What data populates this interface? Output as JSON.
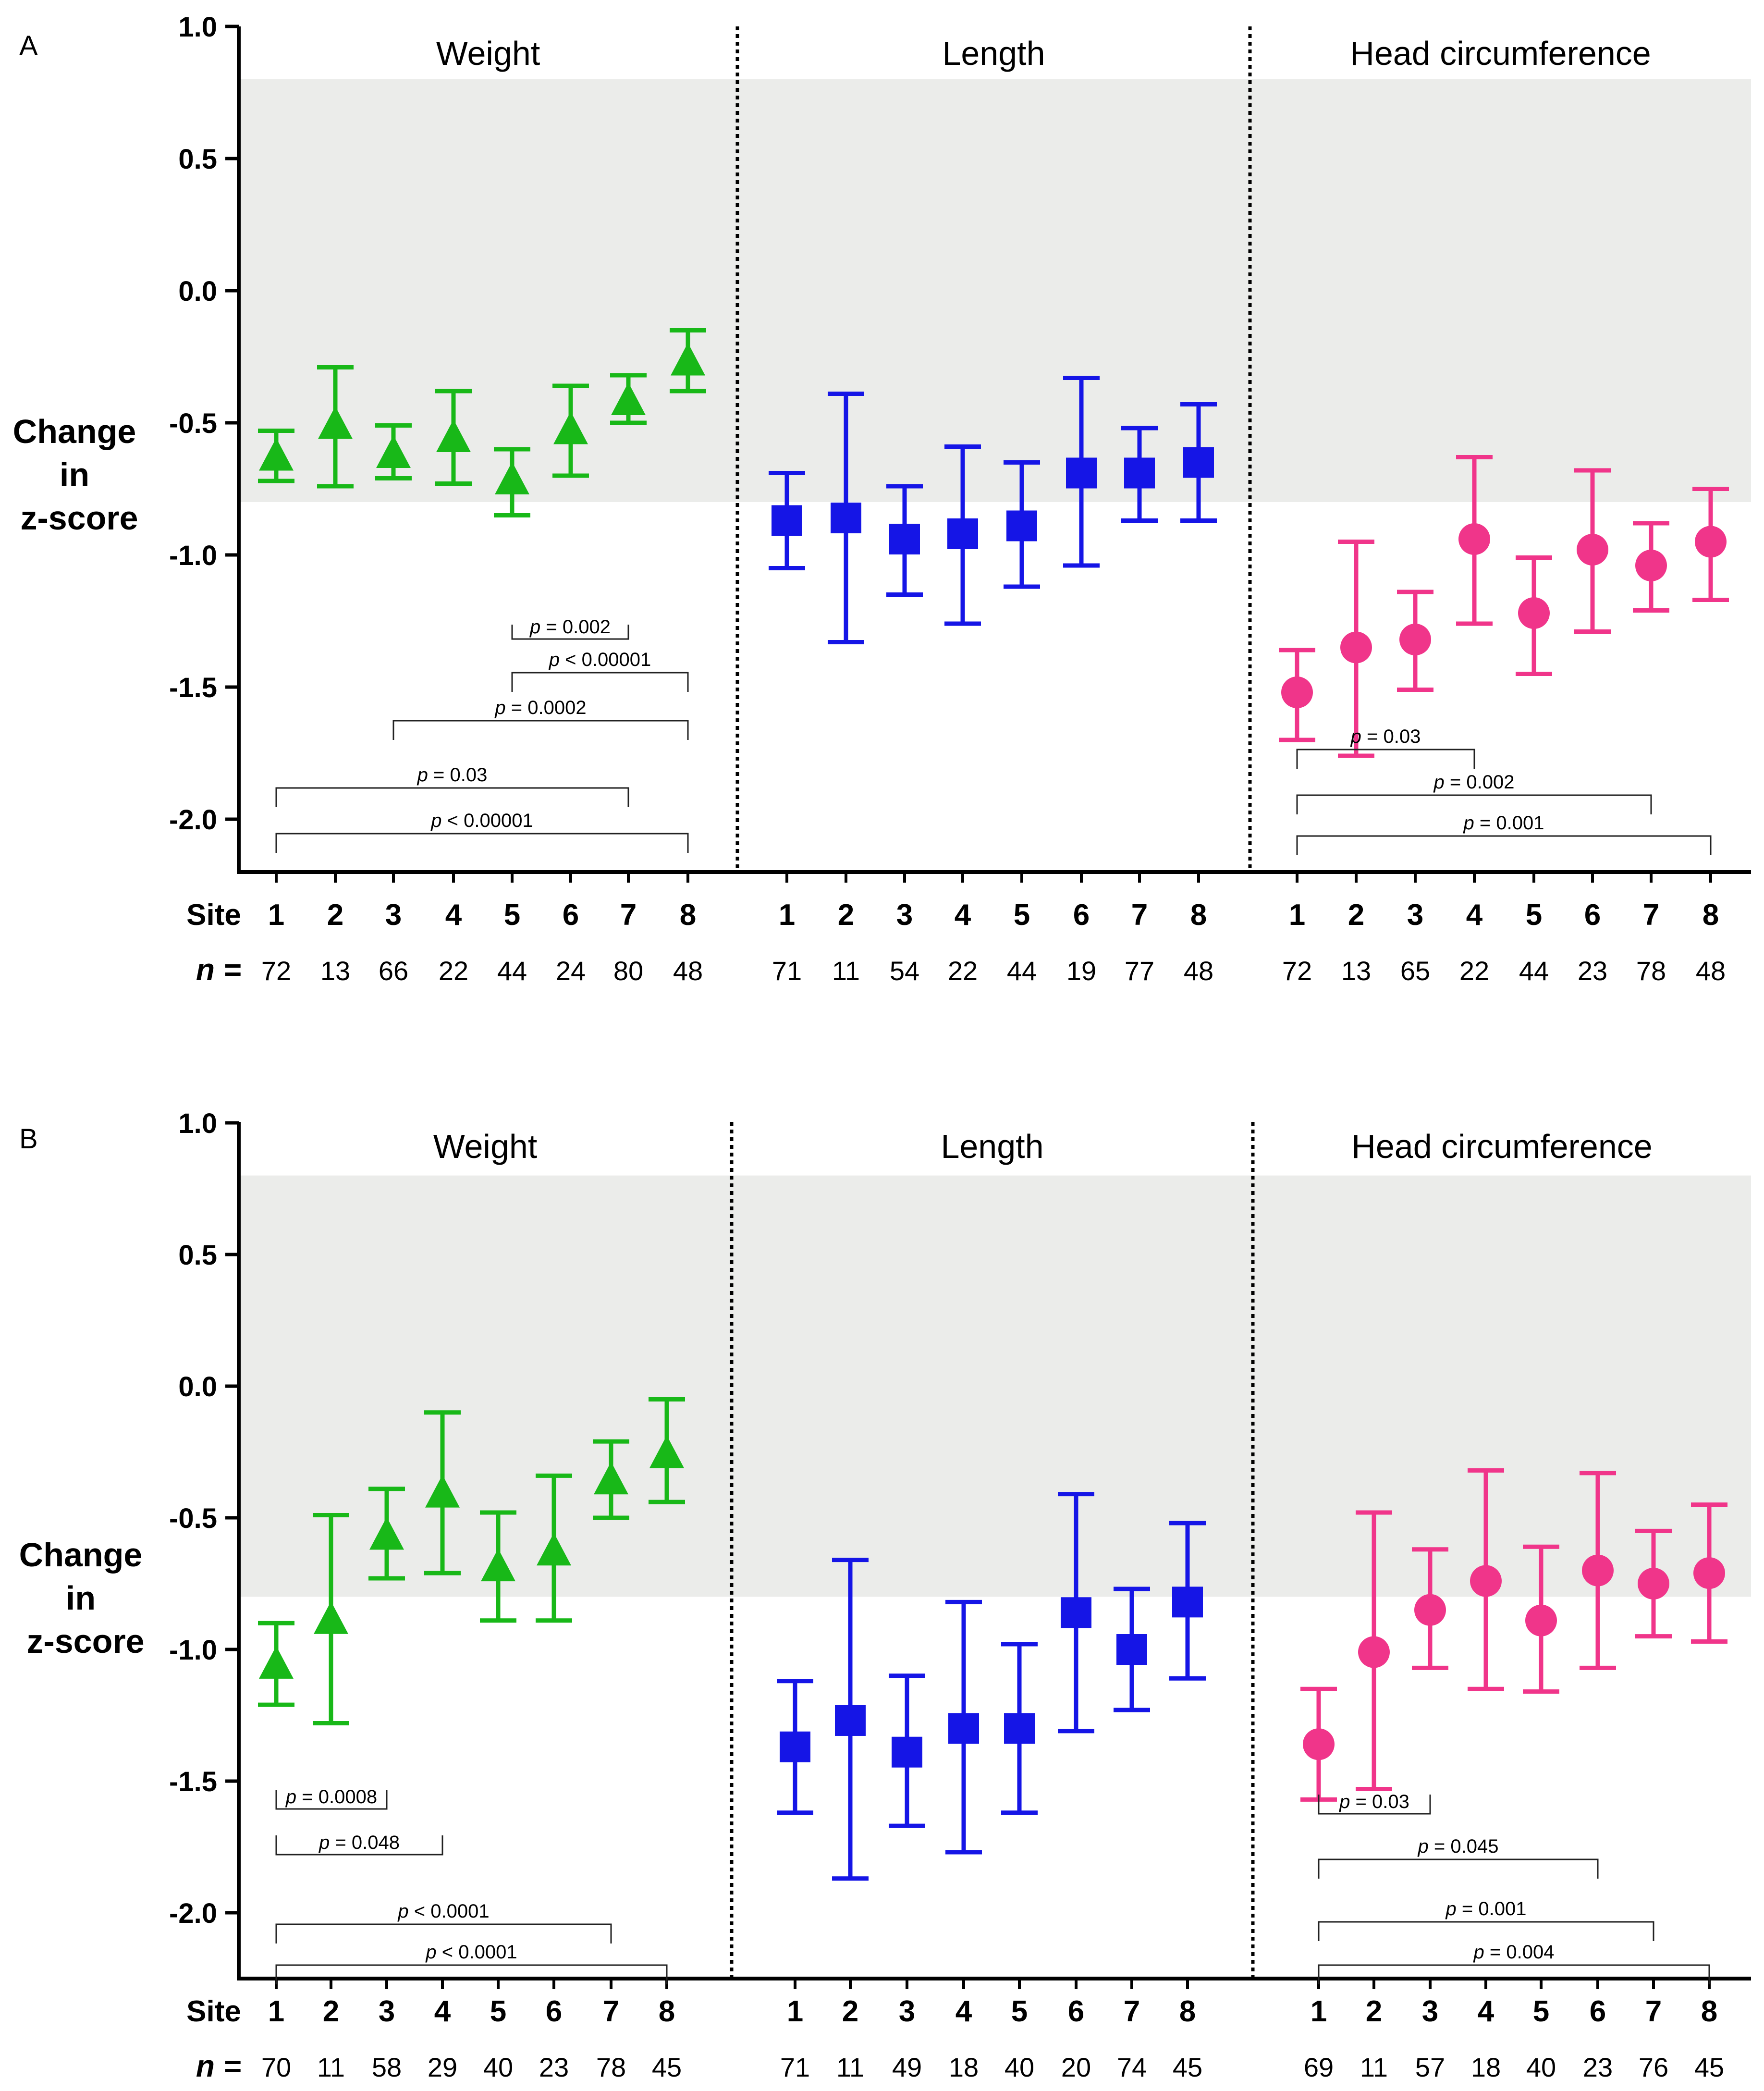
{
  "chart_data": [
    {
      "type": "scatter",
      "panel": "A",
      "ylabel": "Change in z-score",
      "ylim": [
        -2.2,
        1.0
      ],
      "yticks": [
        "1.0",
        "0.5",
        "0.0",
        "-0.5",
        "-1.0",
        "-1.5",
        "-2.0"
      ],
      "reference_band": [
        -0.8,
        0.8
      ],
      "site_label": "Site",
      "n_label": "n =",
      "sections": [
        {
          "title": "Weight",
          "marker": "triangle",
          "color": "#18b818",
          "sites": [
            "1",
            "2",
            "3",
            "4",
            "5",
            "6",
            "7",
            "8"
          ],
          "n": [
            "72",
            "13",
            "66",
            "22",
            "44",
            "24",
            "80",
            "48"
          ],
          "mean": [
            -0.63,
            -0.51,
            -0.62,
            -0.56,
            -0.72,
            -0.53,
            -0.42,
            -0.27
          ],
          "lower": [
            -0.72,
            -0.74,
            -0.71,
            -0.73,
            -0.85,
            -0.7,
            -0.5,
            -0.38
          ],
          "upper": [
            -0.53,
            -0.29,
            -0.51,
            -0.38,
            -0.6,
            -0.36,
            -0.32,
            -0.15
          ],
          "comparisons": [
            {
              "from": 5,
              "to": 7,
              "p": "= 0.002",
              "dir": "up"
            },
            {
              "from": 5,
              "to": 8,
              "p": "< 0.00001",
              "dir": "down"
            },
            {
              "from": 3,
              "to": 8,
              "p": "= 0.0002",
              "dir": "down"
            },
            {
              "from": 1,
              "to": 7,
              "p": "= 0.03",
              "dir": "down"
            },
            {
              "from": 1,
              "to": 8,
              "p": "< 0.00001",
              "dir": "down"
            }
          ]
        },
        {
          "title": "Length",
          "marker": "square",
          "color": "#1515e6",
          "sites": [
            "1",
            "2",
            "3",
            "4",
            "5",
            "6",
            "7",
            "8"
          ],
          "n": [
            "71",
            "11",
            "54",
            "22",
            "44",
            "19",
            "77",
            "48"
          ],
          "mean": [
            -0.87,
            -0.86,
            -0.94,
            -0.92,
            -0.89,
            -0.69,
            -0.69,
            -0.65
          ],
          "lower": [
            -1.05,
            -1.33,
            -1.15,
            -1.26,
            -1.12,
            -1.04,
            -0.87,
            -0.87
          ],
          "upper": [
            -0.69,
            -0.39,
            -0.74,
            -0.59,
            -0.65,
            -0.33,
            -0.52,
            -0.43
          ],
          "comparisons": []
        },
        {
          "title": "Head circumference",
          "marker": "circle",
          "color": "#f0358a",
          "sites": [
            "1",
            "2",
            "3",
            "4",
            "5",
            "6",
            "7",
            "8"
          ],
          "n": [
            "72",
            "13",
            "65",
            "22",
            "44",
            "23",
            "78",
            "48"
          ],
          "mean": [
            -1.52,
            -1.35,
            -1.32,
            -0.94,
            -1.22,
            -0.98,
            -1.04,
            -0.95
          ],
          "lower": [
            -1.7,
            -1.76,
            -1.51,
            -1.26,
            -1.45,
            -1.29,
            -1.21,
            -1.17
          ],
          "upper": [
            -1.36,
            -0.95,
            -1.14,
            -0.63,
            -1.01,
            -0.68,
            -0.88,
            -0.75
          ],
          "comparisons": [
            {
              "from": 1,
              "to": 4,
              "p": "= 0.03",
              "dir": "down"
            },
            {
              "from": 1,
              "to": 7,
              "p": "= 0.002",
              "dir": "down"
            },
            {
              "from": 1,
              "to": 8,
              "p": "= 0.001",
              "dir": "down"
            }
          ]
        }
      ]
    },
    {
      "type": "scatter",
      "panel": "B",
      "ylabel": "Change in z-score",
      "ylim": [
        -2.25,
        1.0
      ],
      "yticks": [
        "1.0",
        "0.5",
        "0.0",
        "-0.5",
        "-1.0",
        "-1.5",
        "-2.0"
      ],
      "reference_band": [
        -0.8,
        0.8
      ],
      "site_label": "Site",
      "n_label": "n =",
      "sections": [
        {
          "title": "Weight",
          "marker": "triangle",
          "color": "#18b818",
          "sites": [
            "1",
            "2",
            "3",
            "4",
            "5",
            "6",
            "7",
            "8"
          ],
          "n": [
            "70",
            "11",
            "58",
            "29",
            "40",
            "23",
            "78",
            "45"
          ],
          "mean": [
            -1.06,
            -0.89,
            -0.57,
            -0.41,
            -0.69,
            -0.63,
            -0.36,
            -0.26
          ],
          "lower": [
            -1.21,
            -1.28,
            -0.73,
            -0.71,
            -0.89,
            -0.89,
            -0.5,
            -0.44
          ],
          "upper": [
            -0.9,
            -0.49,
            -0.39,
            -0.1,
            -0.48,
            -0.34,
            -0.21,
            -0.05
          ],
          "comparisons": [
            {
              "from": 1,
              "to": 3,
              "p": "= 0.0008",
              "dir": "up"
            },
            {
              "from": 1,
              "to": 4,
              "p": "= 0.048",
              "dir": "up"
            },
            {
              "from": 1,
              "to": 7,
              "p": "< 0.0001",
              "dir": "down"
            },
            {
              "from": 1,
              "to": 8,
              "p": "< 0.0001",
              "dir": "down"
            }
          ]
        },
        {
          "title": "Length",
          "marker": "square",
          "color": "#1515e6",
          "sites": [
            "1",
            "2",
            "3",
            "4",
            "5",
            "6",
            "7",
            "8"
          ],
          "n": [
            "71",
            "11",
            "49",
            "18",
            "40",
            "20",
            "74",
            "45"
          ],
          "mean": [
            -1.37,
            -1.27,
            -1.39,
            -1.3,
            -1.3,
            -0.86,
            -1.0,
            -0.82
          ],
          "lower": [
            -1.62,
            -1.87,
            -1.67,
            -1.77,
            -1.62,
            -1.31,
            -1.23,
            -1.11
          ],
          "upper": [
            -1.12,
            -0.66,
            -1.1,
            -0.82,
            -0.98,
            -0.41,
            -0.77,
            -0.52
          ],
          "comparisons": []
        },
        {
          "title": "Head circumference",
          "marker": "circle",
          "color": "#f0358a",
          "sites": [
            "1",
            "2",
            "3",
            "4",
            "5",
            "6",
            "7",
            "8"
          ],
          "n": [
            "69",
            "11",
            "57",
            "18",
            "40",
            "23",
            "76",
            "45"
          ],
          "mean": [
            -1.36,
            -1.01,
            -0.85,
            -0.74,
            -0.89,
            -0.7,
            -0.75,
            -0.71
          ],
          "lower": [
            -1.57,
            -1.53,
            -1.07,
            -1.15,
            -1.16,
            -1.07,
            -0.95,
            -0.97
          ],
          "upper": [
            -1.15,
            -0.48,
            -0.62,
            -0.32,
            -0.61,
            -0.33,
            -0.55,
            -0.45
          ],
          "comparisons": [
            {
              "from": 1,
              "to": 3,
              "p": "= 0.03",
              "dir": "up"
            },
            {
              "from": 1,
              "to": 6,
              "p": "= 0.045",
              "dir": "down"
            },
            {
              "from": 1,
              "to": 7,
              "p": "= 0.001",
              "dir": "down"
            },
            {
              "from": 1,
              "to": 8,
              "p": "= 0.004",
              "dir": "down"
            }
          ]
        }
      ]
    }
  ]
}
